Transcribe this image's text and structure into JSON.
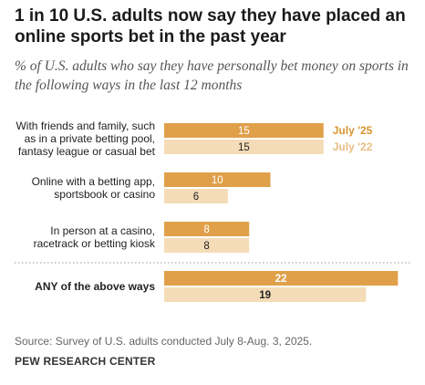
{
  "header": {
    "title": "1 in 10 U.S. adults now say they have placed an online sports bet in the past year",
    "subtitle": "% of U.S. adults who say they have personally bet money on sports in the following ways in the last 12 months"
  },
  "footer": {
    "source": "Source: Survey of U.S. adults conducted July 8-Aug. 3, 2025.",
    "brand": "PEW RESEARCH CENTER"
  },
  "colors": {
    "series_2025": "#e0a04a",
    "series_2022": "#f5dcb8",
    "label_2025": "#d9952f",
    "label_2022": "#e8bd82"
  },
  "chart_data": {
    "type": "bar",
    "orientation": "horizontal",
    "categories": [
      [
        "With friends and family, such",
        "as in a private betting pool,",
        "fantasy league or casual bet"
      ],
      [
        "Online with a betting app,",
        "sportsbook or casino"
      ],
      [
        "In person at a casino,",
        "racetrack or betting kiosk"
      ],
      [
        "ANY of the above ways"
      ]
    ],
    "series": [
      {
        "name": "July '25",
        "values": [
          15,
          10,
          8,
          22
        ]
      },
      {
        "name": "July '22",
        "values": [
          15,
          6,
          8,
          19
        ]
      }
    ],
    "xlim": [
      0,
      22
    ],
    "legend": "inline-right-of-first-group",
    "grid": false
  }
}
